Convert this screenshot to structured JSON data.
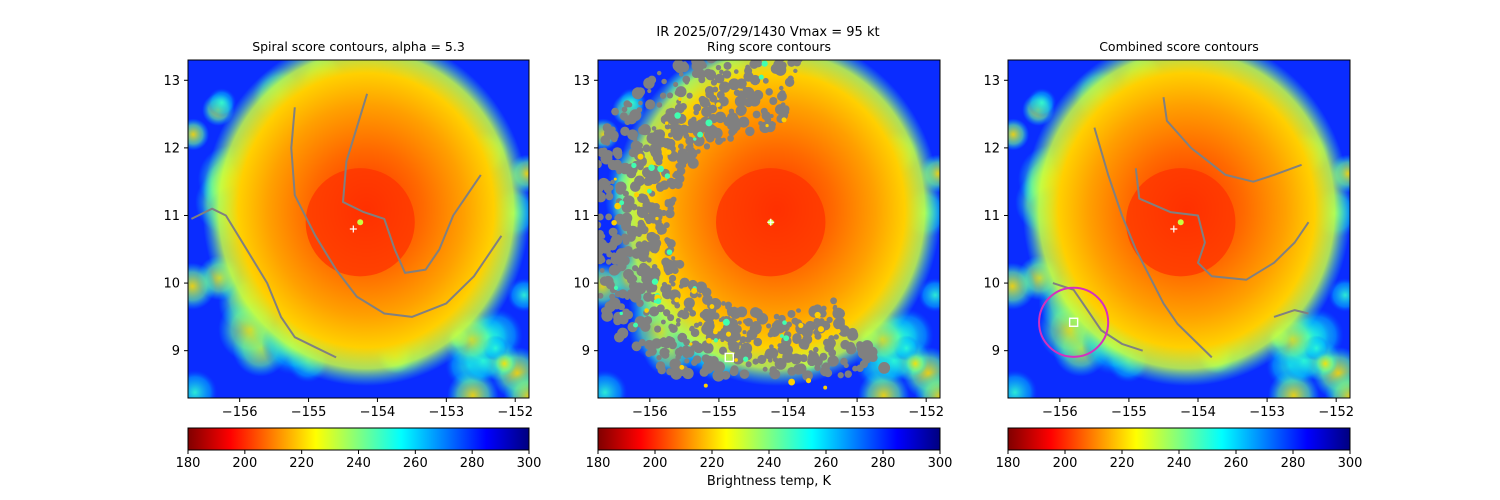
{
  "suptitle": "IR  2025/07/29/1430    Vmax = 95 kt",
  "colors": {
    "contour": "#808080",
    "marker": "#ffffff",
    "circle": "#d62fbf",
    "colormap_jet_r": [
      "#800000",
      "#ff0000",
      "#ff8000",
      "#ffff00",
      "#80ff80",
      "#00ffff",
      "#0080ff",
      "#0000ff",
      "#000080"
    ]
  },
  "colorbar": {
    "min": 180,
    "max": 300,
    "ticks": [
      "180",
      "200",
      "220",
      "240",
      "260",
      "280",
      "300"
    ],
    "label": "Brightness temp, K"
  },
  "chart_data": [
    {
      "type": "heatmap",
      "title": "Spiral score contours, alpha =  5.3",
      "xlabel": "",
      "ylabel": "",
      "xlim": [
        -156.75,
        -151.8
      ],
      "ylim": [
        8.3,
        13.3
      ],
      "xticks": [
        -156,
        -155,
        -154,
        -153,
        -152
      ],
      "yticks": [
        9,
        10,
        11,
        12,
        13
      ],
      "xticklabels": [
        "−156",
        "−155",
        "−154",
        "−153",
        "−152"
      ],
      "yticklabels": [
        "9",
        "10",
        "11",
        "12",
        "13"
      ],
      "storm_center": {
        "lon": -154.25,
        "lat": 10.9,
        "tb": 198
      },
      "eye_marker": {
        "lon": -154.35,
        "lat": 10.8
      },
      "contours": [
        [
          [
            -156.7,
            10.95
          ],
          [
            -156.4,
            11.1
          ],
          [
            -156.2,
            11.0
          ],
          [
            -155.9,
            10.5
          ],
          [
            -155.6,
            10.0
          ],
          [
            -155.4,
            9.5
          ],
          [
            -155.2,
            9.2
          ],
          [
            -154.9,
            9.05
          ],
          [
            -154.6,
            8.9
          ]
        ],
        [
          [
            -155.2,
            12.6
          ],
          [
            -155.25,
            12.0
          ],
          [
            -155.2,
            11.3
          ],
          [
            -154.9,
            10.7
          ],
          [
            -154.6,
            10.2
          ],
          [
            -154.3,
            9.8
          ],
          [
            -153.9,
            9.55
          ],
          [
            -153.5,
            9.5
          ],
          [
            -153.0,
            9.7
          ],
          [
            -152.6,
            10.1
          ],
          [
            -152.2,
            10.7
          ]
        ],
        [
          [
            -154.15,
            12.8
          ],
          [
            -154.3,
            12.3
          ],
          [
            -154.45,
            11.8
          ],
          [
            -154.5,
            11.2
          ],
          [
            -154.2,
            11.05
          ],
          [
            -153.9,
            10.95
          ],
          [
            -153.75,
            10.5
          ],
          [
            -153.6,
            10.15
          ],
          [
            -153.3,
            10.2
          ],
          [
            -153.1,
            10.5
          ],
          [
            -152.9,
            11.0
          ],
          [
            -152.7,
            11.3
          ],
          [
            -152.5,
            11.6
          ]
        ]
      ],
      "square_marker": null,
      "circle_marker": null
    },
    {
      "type": "heatmap",
      "title": "Ring score contours",
      "xlabel": "",
      "ylabel": "",
      "xlim": [
        -156.75,
        -151.8
      ],
      "ylim": [
        8.3,
        13.3
      ],
      "xticks": [
        -156,
        -155,
        -154,
        -153,
        -152
      ],
      "yticks": [
        9,
        10,
        11,
        12,
        13
      ],
      "xticklabels": [
        "−156",
        "−155",
        "−154",
        "−153",
        "−152"
      ],
      "yticklabels": [
        "9",
        "10",
        "11",
        "12",
        "13"
      ],
      "storm_center": {
        "lon": -154.25,
        "lat": 10.9,
        "tb": 198
      },
      "eye_marker": {
        "lon": -154.25,
        "lat": 10.9
      },
      "ring_region": true,
      "contours": [],
      "square_marker": {
        "lon": -154.85,
        "lat": 8.9
      },
      "circle_marker": null
    },
    {
      "type": "heatmap",
      "title": "Combined score contours",
      "xlabel": "",
      "ylabel": "",
      "xlim": [
        -156.75,
        -151.8
      ],
      "ylim": [
        8.3,
        13.3
      ],
      "xticks": [
        -156,
        -155,
        -154,
        -153,
        -152
      ],
      "yticks": [
        9,
        10,
        11,
        12,
        13
      ],
      "xticklabels": [
        "−156",
        "−155",
        "−154",
        "−153",
        "−152"
      ],
      "yticklabels": [
        "9",
        "10",
        "11",
        "12",
        "13"
      ],
      "storm_center": {
        "lon": -154.25,
        "lat": 10.9,
        "tb": 198
      },
      "eye_marker": {
        "lon": -154.35,
        "lat": 10.8
      },
      "contours": [
        [
          [
            -155.5,
            12.3
          ],
          [
            -155.3,
            11.6
          ],
          [
            -155.1,
            11.0
          ],
          [
            -154.9,
            10.5
          ],
          [
            -154.7,
            10.1
          ],
          [
            -154.5,
            9.7
          ],
          [
            -154.3,
            9.4
          ],
          [
            -154.0,
            9.1
          ],
          [
            -153.8,
            8.9
          ]
        ],
        [
          [
            -156.1,
            10.0
          ],
          [
            -155.8,
            9.9
          ],
          [
            -155.6,
            9.6
          ],
          [
            -155.4,
            9.3
          ],
          [
            -155.1,
            9.1
          ],
          [
            -154.8,
            9.0
          ]
        ],
        [
          [
            -154.5,
            12.75
          ],
          [
            -154.45,
            12.4
          ],
          [
            -154.1,
            12.0
          ],
          [
            -153.6,
            11.6
          ],
          [
            -153.2,
            11.5
          ],
          [
            -152.9,
            11.6
          ],
          [
            -152.5,
            11.75
          ]
        ],
        [
          [
            -154.9,
            11.7
          ],
          [
            -154.85,
            11.25
          ],
          [
            -154.4,
            11.05
          ],
          [
            -154.0,
            11.0
          ],
          [
            -153.9,
            10.6
          ],
          [
            -154.0,
            10.3
          ],
          [
            -153.8,
            10.1
          ],
          [
            -153.3,
            10.05
          ],
          [
            -152.9,
            10.3
          ],
          [
            -152.6,
            10.6
          ],
          [
            -152.4,
            10.9
          ]
        ],
        [
          [
            -152.9,
            9.5
          ],
          [
            -152.6,
            9.6
          ],
          [
            -152.4,
            9.55
          ]
        ]
      ],
      "square_marker": {
        "lon": -155.8,
        "lat": 9.42
      },
      "circle_marker": {
        "lon": -155.8,
        "lat": 9.42,
        "radius_deg": 0.5
      }
    }
  ]
}
